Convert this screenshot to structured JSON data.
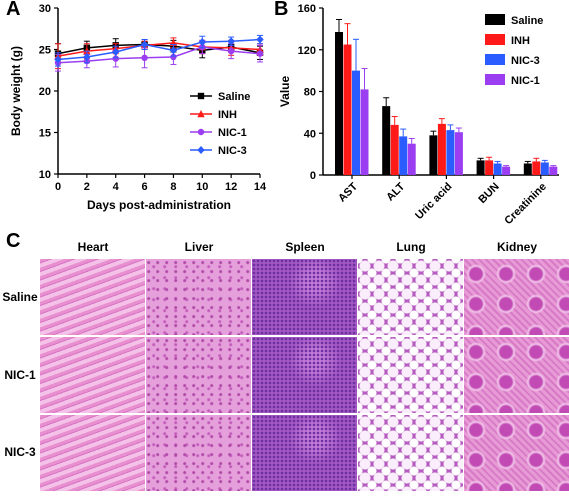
{
  "panels": {
    "a": "A",
    "b": "B",
    "c": "C"
  },
  "colors": {
    "saline": "#000000",
    "inh": "#ff1a1a",
    "nic3": "#2a5cff",
    "nic1": "#9b3df0"
  },
  "chart_data": [
    {
      "type": "line",
      "xlabel": "Days post-administration",
      "ylabel": "Body weight (g)",
      "xlim": [
        0,
        14
      ],
      "ylim": [
        10,
        30
      ],
      "x_ticks": [
        0,
        2,
        4,
        6,
        8,
        10,
        12,
        14
      ],
      "y_ticks": [
        10,
        15,
        20,
        25,
        30
      ],
      "legend": "right",
      "x": [
        0,
        2,
        4,
        6,
        8,
        10,
        12,
        14
      ],
      "series": [
        {
          "name": "Saline",
          "marker": "square",
          "color": "#000000",
          "values": [
            24.5,
            25.2,
            25.5,
            25.6,
            25.4,
            24.9,
            25.3,
            24.6
          ],
          "err": [
            1.2,
            0.8,
            0.8,
            0.6,
            0.7,
            0.9,
            0.6,
            0.8
          ]
        },
        {
          "name": "INH",
          "marker": "triangle",
          "color": "#ff1a1a",
          "values": [
            24.2,
            24.8,
            25.1,
            25.5,
            25.8,
            25.3,
            25.2,
            25.0
          ],
          "err": [
            1.5,
            0.9,
            0.6,
            0.5,
            0.6,
            0.8,
            0.9,
            0.7
          ]
        },
        {
          "name": "NIC-1",
          "marker": "circle",
          "color": "#9b3df0",
          "values": [
            23.4,
            23.6,
            23.9,
            24.0,
            24.1,
            25.3,
            24.8,
            24.5
          ],
          "err": [
            1.0,
            0.8,
            1.0,
            1.2,
            0.9,
            0.8,
            0.9,
            1.0
          ]
        },
        {
          "name": "NIC-3",
          "marker": "diamond",
          "color": "#2a5cff",
          "values": [
            23.8,
            24.1,
            24.7,
            25.6,
            24.9,
            25.9,
            26.0,
            26.2
          ],
          "err": [
            0.8,
            0.7,
            0.7,
            0.6,
            0.7,
            0.7,
            0.5,
            0.5
          ]
        }
      ]
    },
    {
      "type": "bar",
      "ylabel": "Value",
      "ylim": [
        0,
        160
      ],
      "y_ticks": [
        0,
        40,
        80,
        120,
        160
      ],
      "legend": "top-right",
      "categories": [
        "AST",
        "ALT",
        "Uric acid",
        "BUN",
        "Creatinine"
      ],
      "series": [
        {
          "name": "Saline",
          "color": "#000000",
          "values": [
            137,
            66,
            38,
            14,
            11
          ],
          "err": [
            12,
            8,
            4,
            2,
            2
          ]
        },
        {
          "name": "INH",
          "color": "#ff1a1a",
          "values": [
            125,
            48,
            49,
            14,
            13
          ],
          "err": [
            20,
            8,
            5,
            3,
            3
          ]
        },
        {
          "name": "NIC-3",
          "color": "#2a5cff",
          "values": [
            100,
            37,
            43,
            11,
            12
          ],
          "err": [
            30,
            7,
            5,
            2,
            2
          ]
        },
        {
          "name": "NIC-1",
          "color": "#9b3df0",
          "values": [
            82,
            30,
            41,
            8,
            8
          ],
          "err": [
            20,
            5,
            4,
            1,
            1
          ]
        }
      ]
    }
  ],
  "histology": {
    "columns": [
      "Heart",
      "Liver",
      "Spleen",
      "Lung",
      "Kidney"
    ],
    "rows": [
      "Saline",
      "NIC-1",
      "NIC-3"
    ]
  }
}
